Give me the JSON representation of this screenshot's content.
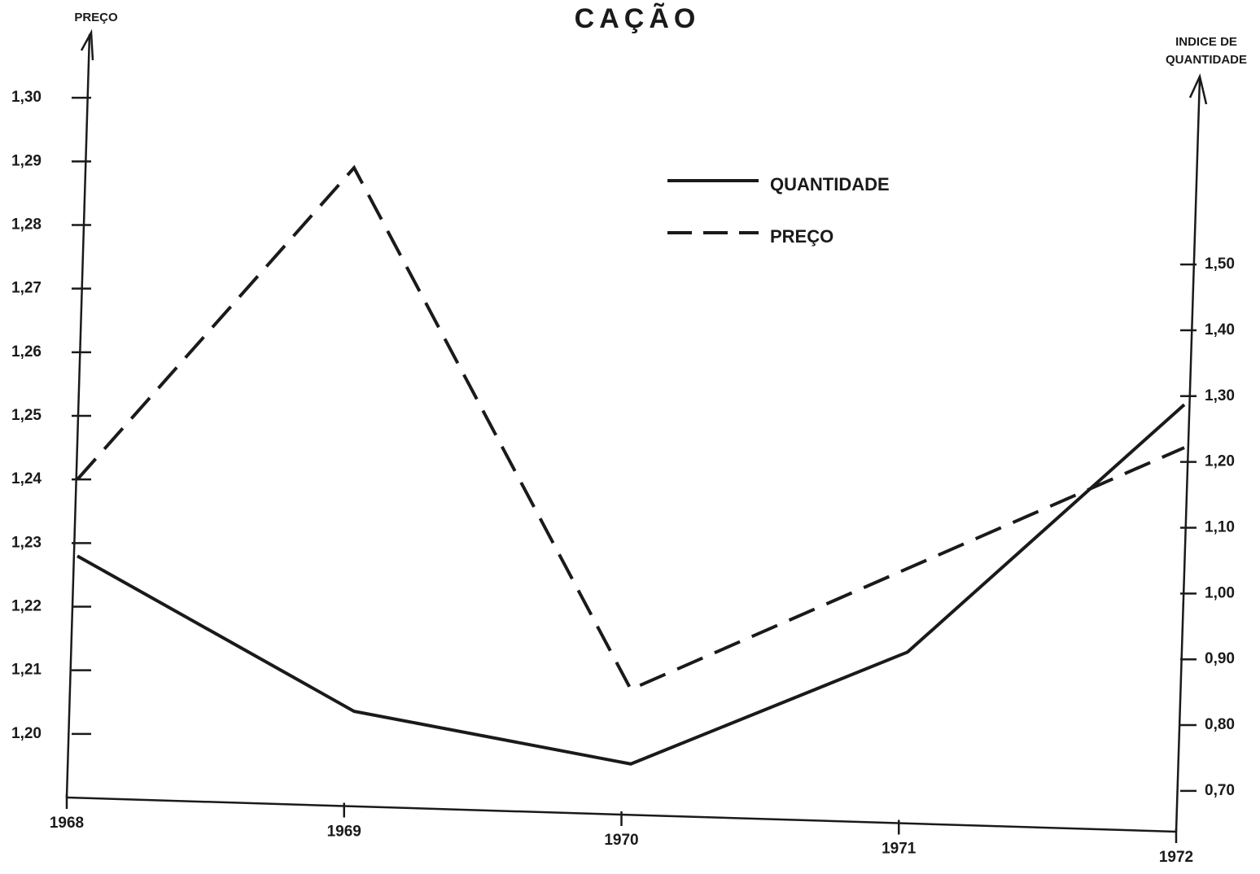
{
  "chart_data": {
    "type": "line",
    "title": "CAÇÃO",
    "ylabel": "PREÇO",
    "y2label": [
      "INDICE DE",
      "QUANTIDADE"
    ],
    "categories": [
      "1968",
      "1969",
      "1970",
      "1971",
      "1972"
    ],
    "series": [
      {
        "name": "QUANTIDADE",
        "color": "#1a1a1a",
        "dash": false,
        "axis": "y2",
        "values": [
          1.057,
          0.821,
          0.741,
          0.911,
          1.287
        ]
      },
      {
        "name": "PREÇO",
        "color": "#1a1a1a",
        "dash": true,
        "values": [
          1.24,
          1.289,
          1.207,
          1.226,
          1.245
        ]
      }
    ],
    "ylim": [
      1.19,
      1.31
    ],
    "yticks": [
      {
        "value": 1.2,
        "label": "1,20"
      },
      {
        "value": 1.21,
        "label": "1,21"
      },
      {
        "value": 1.22,
        "label": "1,22"
      },
      {
        "value": 1.23,
        "label": "1,23"
      },
      {
        "value": 1.24,
        "label": "1,24"
      },
      {
        "value": 1.25,
        "label": "1,25"
      },
      {
        "value": 1.26,
        "label": "1,26"
      },
      {
        "value": 1.27,
        "label": "1,27"
      },
      {
        "value": 1.28,
        "label": "1,28"
      },
      {
        "value": 1.29,
        "label": "1,29"
      },
      {
        "value": 1.3,
        "label": "1,30"
      }
    ],
    "y2lim": [
      0.69,
      1.85
    ],
    "y2ticks": [
      {
        "value": 0.7,
        "label": "0,70"
      },
      {
        "value": 0.8,
        "label": "0,80"
      },
      {
        "value": 0.9,
        "label": "0,90"
      },
      {
        "value": 1.0,
        "label": "1,00"
      },
      {
        "value": 1.1,
        "label": "1,10"
      },
      {
        "value": 1.2,
        "label": "1,20"
      },
      {
        "value": 1.3,
        "label": "1,30"
      },
      {
        "value": 1.4,
        "label": "1,40"
      },
      {
        "value": 1.5,
        "label": "1,50"
      }
    ],
    "grid": false
  }
}
